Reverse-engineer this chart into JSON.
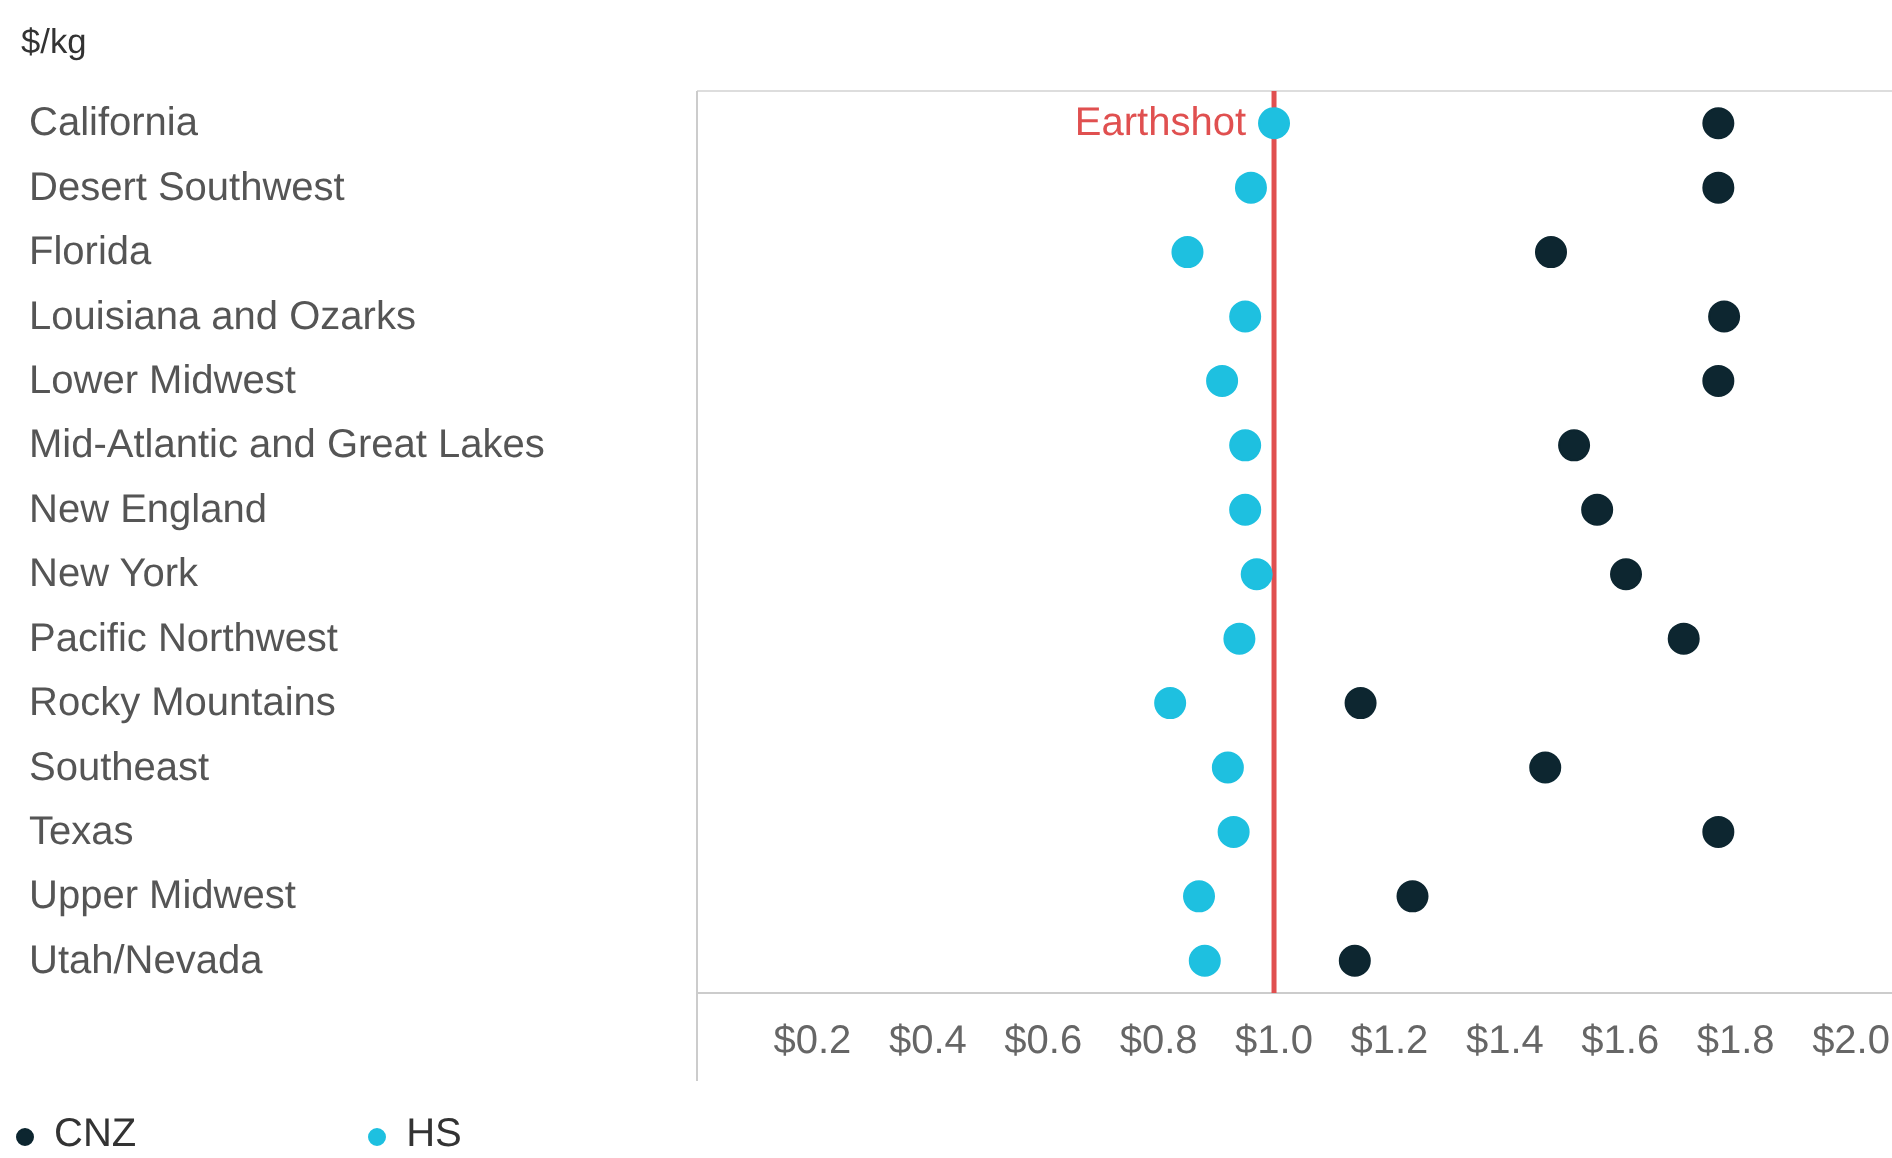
{
  "chart_data": {
    "type": "scatter",
    "ylabel": "$/kg",
    "orientation": "horizontal",
    "categories": [
      "California",
      "Desert Southwest",
      "Florida",
      "Louisiana and Ozarks",
      "Lower Midwest",
      "Mid-Atlantic and Great Lakes",
      "New England",
      "New York",
      "Pacific Northwest",
      "Rocky Mountains",
      "Southeast",
      "Texas",
      "Upper Midwest",
      "Utah/Nevada"
    ],
    "series": [
      {
        "name": "CNZ",
        "color": "#0d2630",
        "values": [
          1.77,
          1.77,
          1.48,
          1.78,
          1.77,
          1.52,
          1.56,
          1.61,
          1.71,
          1.15,
          1.47,
          1.77,
          1.24,
          1.14
        ]
      },
      {
        "name": "HS",
        "color": "#1ec0e0",
        "values": [
          1.0,
          0.96,
          0.85,
          0.95,
          0.91,
          0.95,
          0.95,
          0.97,
          0.94,
          0.82,
          0.92,
          0.93,
          0.87,
          0.88
        ]
      }
    ],
    "xlim": [
      0,
      2.07
    ],
    "xticks": [
      {
        "value": 0.2,
        "label": "$0.2"
      },
      {
        "value": 0.4,
        "label": "$0.4"
      },
      {
        "value": 0.6,
        "label": "$0.6"
      },
      {
        "value": 0.8,
        "label": "$0.8"
      },
      {
        "value": 1.0,
        "label": "$1.0"
      },
      {
        "value": 1.2,
        "label": "$1.2"
      },
      {
        "value": 1.4,
        "label": "$1.4"
      },
      {
        "value": 1.6,
        "label": "$1.6"
      },
      {
        "value": 1.8,
        "label": "$1.8"
      },
      {
        "value": 2.0,
        "label": "$2.0"
      }
    ],
    "ref_lines": [
      {
        "axis": "x",
        "value": 1.0,
        "label": "Earthshot",
        "color": "#e05050"
      }
    ],
    "marker": "circle",
    "grid": false,
    "legend": "bottom left"
  }
}
